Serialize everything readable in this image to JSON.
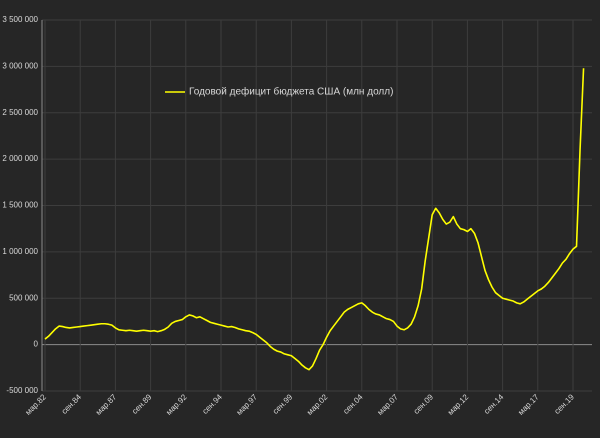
{
  "chart_data": {
    "type": "line",
    "categories": [
      "мар.82",
      null,
      null,
      null,
      null,
      null,
      null,
      null,
      null,
      null,
      "сен.84",
      null,
      null,
      null,
      null,
      null,
      null,
      null,
      null,
      null,
      "мар.87",
      null,
      null,
      null,
      null,
      null,
      null,
      null,
      null,
      null,
      "сен.89",
      null,
      null,
      null,
      null,
      null,
      null,
      null,
      null,
      null,
      "мар.92",
      null,
      null,
      null,
      null,
      null,
      null,
      null,
      null,
      null,
      "сен.94",
      null,
      null,
      null,
      null,
      null,
      null,
      null,
      null,
      null,
      "мар.97",
      null,
      null,
      null,
      null,
      null,
      null,
      null,
      null,
      null,
      "сен.99",
      null,
      null,
      null,
      null,
      null,
      null,
      null,
      null,
      null,
      "мар.02",
      null,
      null,
      null,
      null,
      null,
      null,
      null,
      null,
      null,
      "сен.04",
      null,
      null,
      null,
      null,
      null,
      null,
      null,
      null,
      null,
      "мар.07",
      null,
      null,
      null,
      null,
      null,
      null,
      null,
      null,
      null,
      "сен.09",
      null,
      null,
      null,
      null,
      null,
      null,
      null,
      null,
      null,
      "мар.12",
      null,
      null,
      null,
      null,
      null,
      null,
      null,
      null,
      null,
      "сен.14",
      null,
      null,
      null,
      null,
      null,
      null,
      null,
      null,
      null,
      "мар.17",
      null,
      null,
      null,
      null,
      null,
      null,
      null,
      null,
      null,
      "сен.19",
      null,
      null,
      null
    ],
    "series": [
      {
        "name": "Годовой дефицит бюджета США (млн долл)",
        "color": "#ffff00",
        "values": [
          60000,
          90000,
          130000,
          170000,
          200000,
          195000,
          185000,
          180000,
          185000,
          190000,
          195000,
          200000,
          205000,
          210000,
          215000,
          220000,
          225000,
          225000,
          220000,
          210000,
          180000,
          160000,
          155000,
          150000,
          155000,
          150000,
          145000,
          150000,
          155000,
          150000,
          145000,
          150000,
          140000,
          150000,
          165000,
          190000,
          230000,
          250000,
          260000,
          270000,
          300000,
          320000,
          310000,
          290000,
          300000,
          280000,
          260000,
          240000,
          230000,
          220000,
          210000,
          200000,
          190000,
          195000,
          185000,
          170000,
          160000,
          150000,
          145000,
          130000,
          110000,
          80000,
          50000,
          20000,
          -20000,
          -50000,
          -70000,
          -80000,
          -100000,
          -110000,
          -120000,
          -150000,
          -180000,
          -220000,
          -250000,
          -270000,
          -230000,
          -150000,
          -60000,
          0,
          80000,
          150000,
          200000,
          250000,
          300000,
          350000,
          380000,
          400000,
          420000,
          440000,
          450000,
          420000,
          380000,
          350000,
          330000,
          320000,
          300000,
          280000,
          270000,
          250000,
          200000,
          170000,
          160000,
          180000,
          220000,
          300000,
          420000,
          600000,
          900000,
          1150000,
          1400000,
          1470000,
          1420000,
          1350000,
          1300000,
          1320000,
          1380000,
          1300000,
          1250000,
          1240000,
          1220000,
          1250000,
          1200000,
          1100000,
          950000,
          800000,
          700000,
          620000,
          560000,
          530000,
          500000,
          490000,
          480000,
          470000,
          450000,
          440000,
          460000,
          490000,
          520000,
          550000,
          580000,
          600000,
          630000,
          670000,
          720000,
          770000,
          820000,
          880000,
          920000,
          980000,
          1030000,
          1060000,
          2100000,
          2980000
        ]
      }
    ],
    "ylim": [
      -500000,
      3500000
    ],
    "yticks": [
      {
        "value": -500000,
        "label": "-500 000"
      },
      0,
      {
        "value": 500000,
        "label": "500 000"
      },
      {
        "value": 1000000,
        "label": "1 000 000"
      },
      {
        "value": 1500000,
        "label": "1 500 000"
      },
      {
        "value": 2000000,
        "label": "2 000 000"
      },
      {
        "value": 2500000,
        "label": "2 500 000"
      },
      {
        "value": 3000000,
        "label": "3 000 000"
      },
      {
        "value": 3500000,
        "label": "3 500 000"
      }
    ],
    "grid": true,
    "legend_position": "upper left"
  }
}
